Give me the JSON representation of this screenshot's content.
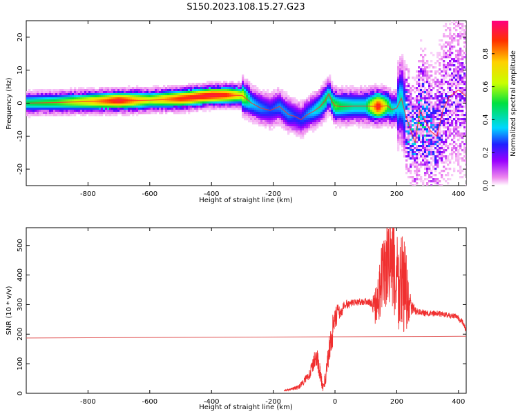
{
  "title": "S150.2023.108.15.27.G23",
  "colors": {
    "snr_line": "#f03030",
    "threshold_line": "#e05050",
    "ridge": "#ff2a2a"
  },
  "chart_data": [
    {
      "type": "heatmap",
      "title": "",
      "xlabel": "Height of straight line (km)",
      "ylabel": "Frequency (Hz)",
      "xlim": [
        -1000,
        425
      ],
      "ylim": [
        -25,
        25
      ],
      "x_ticks": [
        -800,
        -600,
        -400,
        -200,
        0,
        200,
        400
      ],
      "y_ticks": [
        -20,
        -10,
        0,
        10,
        20
      ],
      "colorbar": {
        "label": "Normalized spectral amplitude",
        "range": [
          0,
          1
        ],
        "ticks": [
          0.0,
          0.2,
          0.4,
          0.6,
          0.8
        ],
        "colormap": [
          "#ffffff",
          "#ee88ee",
          "#9a00ff",
          "#2020ff",
          "#00d8ff",
          "#00e040",
          "#c8ff00",
          "#ffd000",
          "#ff3000",
          "#ff0080"
        ]
      },
      "ridge": {
        "x": [
          -1000,
          -900,
          -800,
          -700,
          -600,
          -500,
          -400,
          -350,
          -300,
          -270,
          -240,
          -210,
          -180,
          -150,
          -130,
          -110,
          -90,
          -70,
          -50,
          -30,
          -20,
          -10,
          0,
          20,
          60,
          100,
          140,
          170,
          185,
          200,
          215,
          230,
          245,
          260,
          275,
          290,
          310,
          330,
          350,
          370,
          400,
          425
        ],
        "y": [
          0.0,
          0.2,
          0.5,
          0.7,
          0.9,
          1.3,
          2.3,
          2.4,
          2.3,
          0.0,
          -1.5,
          -2.2,
          -1.0,
          -3.5,
          -4.0,
          -5.0,
          -3.5,
          -2.5,
          -1.2,
          1.0,
          2.8,
          0.5,
          -0.8,
          -1.0,
          -0.9,
          -0.9,
          -1.0,
          -0.8,
          -2.0,
          -1.5,
          1.5,
          -4.0,
          -8.0,
          -12.0,
          -2.0,
          -5.0,
          -8.5,
          -10.0,
          -2.0,
          2.0,
          4.0,
          2.0
        ],
        "amplitude": [
          0.55,
          0.6,
          0.75,
          0.95,
          0.7,
          0.9,
          0.95,
          0.9,
          0.7,
          0.45,
          0.4,
          0.35,
          0.4,
          0.4,
          0.35,
          0.35,
          0.4,
          0.45,
          0.5,
          0.55,
          0.5,
          0.55,
          0.6,
          0.55,
          0.5,
          0.5,
          0.95,
          0.6,
          0.5,
          0.45,
          0.5,
          0.4,
          0.35,
          0.3,
          0.4,
          0.35,
          0.3,
          0.25,
          0.25,
          0.2,
          0.2,
          0.2
        ]
      }
    },
    {
      "type": "line",
      "title": "",
      "xlabel": "Height of straight line (km)",
      "ylabel": "SNR (10 * v/v)",
      "xlim": [
        -1000,
        425
      ],
      "ylim": [
        0,
        560
      ],
      "x_ticks": [
        -800,
        -600,
        -400,
        -200,
        0,
        200,
        400
      ],
      "y_ticks": [
        0,
        100,
        200,
        300,
        400,
        500
      ],
      "threshold": {
        "y_start": 187,
        "y_end": 193
      },
      "series": [
        {
          "x": [
            -165,
            -150,
            -120,
            -100,
            -80,
            -60,
            -50,
            -40,
            -30,
            -20,
            -10,
            0,
            10,
            20,
            30,
            40,
            60,
            80,
            100,
            120,
            130,
            140,
            150,
            160,
            170,
            180,
            190,
            200,
            210,
            220,
            230,
            240,
            250,
            260,
            270,
            300,
            330,
            360,
            390,
            410,
            425
          ],
          "values": [
            10,
            12,
            20,
            40,
            70,
            130,
            80,
            20,
            50,
            140,
            200,
            240,
            280,
            270,
            300,
            300,
            305,
            310,
            310,
            305,
            295,
            320,
            380,
            410,
            440,
            450,
            420,
            380,
            360,
            380,
            330,
            300,
            290,
            280,
            275,
            270,
            270,
            265,
            260,
            245,
            215
          ],
          "noise": [
            2,
            3,
            8,
            12,
            20,
            35,
            30,
            15,
            25,
            50,
            60,
            45,
            30,
            20,
            15,
            15,
            12,
            12,
            12,
            15,
            60,
            90,
            120,
            150,
            160,
            170,
            180,
            190,
            180,
            170,
            160,
            60,
            20,
            15,
            12,
            10,
            10,
            10,
            10,
            10,
            10
          ]
        }
      ]
    }
  ]
}
